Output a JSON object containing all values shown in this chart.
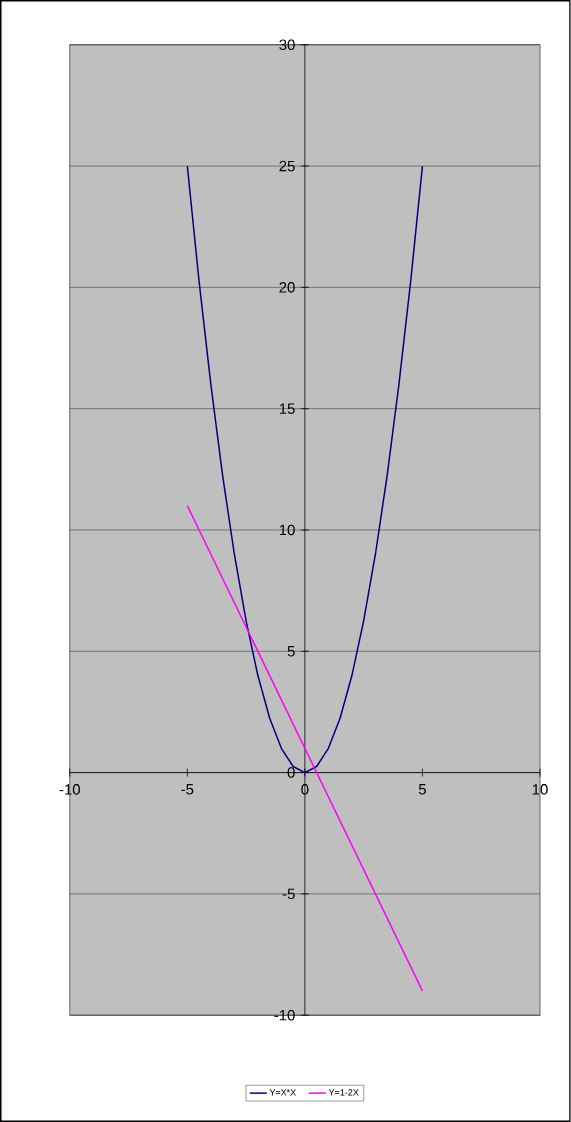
{
  "chart_data": {
    "type": "line",
    "series": [
      {
        "name": "Y=X*X",
        "color": "#000080",
        "x": [
          -5,
          -4.5,
          -4,
          -3.5,
          -3,
          -2.5,
          -2,
          -1.5,
          -1,
          -0.5,
          0,
          0.5,
          1,
          1.5,
          2,
          2.5,
          3,
          3.5,
          4,
          4.5,
          5
        ],
        "values": [
          25,
          20.25,
          16,
          12.25,
          9,
          6.25,
          4,
          2.25,
          1,
          0.25,
          0,
          0.25,
          1,
          2.25,
          4,
          6.25,
          9,
          12.25,
          16,
          20.25,
          25
        ]
      },
      {
        "name": "Y=1-2X",
        "color": "#ff00ff",
        "x": [
          -5,
          -4,
          -3,
          -2,
          -1,
          0,
          1,
          2,
          3,
          4,
          5
        ],
        "values": [
          11,
          9,
          7,
          5,
          3,
          1,
          -1,
          -3,
          -5,
          -7,
          -9
        ]
      }
    ],
    "xlim": [
      -10,
      10
    ],
    "ylim": [
      -10,
      30
    ],
    "xticks": [
      -10,
      -5,
      0,
      5,
      10
    ],
    "yticks": [
      -10,
      -5,
      0,
      5,
      10,
      15,
      20,
      25,
      30
    ],
    "grid": "y",
    "legend": "bottom"
  }
}
